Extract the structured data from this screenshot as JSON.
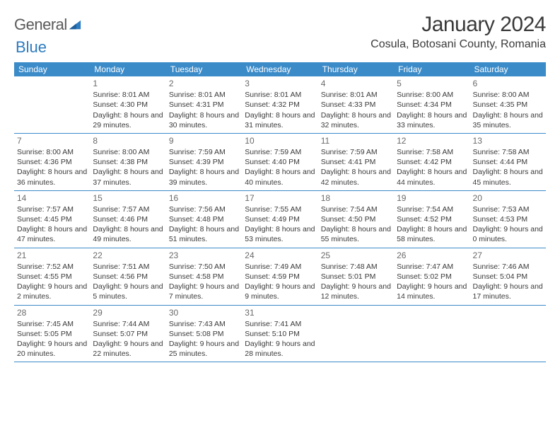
{
  "logo": {
    "text1": "General",
    "text2": "Blue"
  },
  "header": {
    "title": "January 2024",
    "location": "Cosula, Botosani County, Romania"
  },
  "colors": {
    "header_bar": "#3b8bc9",
    "week_divider": "#3b8bc9",
    "text": "#3a3a3a",
    "daynum": "#6a6a6a",
    "logo_gray": "#5a5a5a",
    "logo_blue": "#2d7bc0",
    "background": "#ffffff"
  },
  "weekdays": [
    "Sunday",
    "Monday",
    "Tuesday",
    "Wednesday",
    "Thursday",
    "Friday",
    "Saturday"
  ],
  "weeks": [
    [
      {
        "n": "",
        "sr": "",
        "ss": "",
        "dl": ""
      },
      {
        "n": "1",
        "sr": "Sunrise: 8:01 AM",
        "ss": "Sunset: 4:30 PM",
        "dl": "Daylight: 8 hours and 29 minutes."
      },
      {
        "n": "2",
        "sr": "Sunrise: 8:01 AM",
        "ss": "Sunset: 4:31 PM",
        "dl": "Daylight: 8 hours and 30 minutes."
      },
      {
        "n": "3",
        "sr": "Sunrise: 8:01 AM",
        "ss": "Sunset: 4:32 PM",
        "dl": "Daylight: 8 hours and 31 minutes."
      },
      {
        "n": "4",
        "sr": "Sunrise: 8:01 AM",
        "ss": "Sunset: 4:33 PM",
        "dl": "Daylight: 8 hours and 32 minutes."
      },
      {
        "n": "5",
        "sr": "Sunrise: 8:00 AM",
        "ss": "Sunset: 4:34 PM",
        "dl": "Daylight: 8 hours and 33 minutes."
      },
      {
        "n": "6",
        "sr": "Sunrise: 8:00 AM",
        "ss": "Sunset: 4:35 PM",
        "dl": "Daylight: 8 hours and 35 minutes."
      }
    ],
    [
      {
        "n": "7",
        "sr": "Sunrise: 8:00 AM",
        "ss": "Sunset: 4:36 PM",
        "dl": "Daylight: 8 hours and 36 minutes."
      },
      {
        "n": "8",
        "sr": "Sunrise: 8:00 AM",
        "ss": "Sunset: 4:38 PM",
        "dl": "Daylight: 8 hours and 37 minutes."
      },
      {
        "n": "9",
        "sr": "Sunrise: 7:59 AM",
        "ss": "Sunset: 4:39 PM",
        "dl": "Daylight: 8 hours and 39 minutes."
      },
      {
        "n": "10",
        "sr": "Sunrise: 7:59 AM",
        "ss": "Sunset: 4:40 PM",
        "dl": "Daylight: 8 hours and 40 minutes."
      },
      {
        "n": "11",
        "sr": "Sunrise: 7:59 AM",
        "ss": "Sunset: 4:41 PM",
        "dl": "Daylight: 8 hours and 42 minutes."
      },
      {
        "n": "12",
        "sr": "Sunrise: 7:58 AM",
        "ss": "Sunset: 4:42 PM",
        "dl": "Daylight: 8 hours and 44 minutes."
      },
      {
        "n": "13",
        "sr": "Sunrise: 7:58 AM",
        "ss": "Sunset: 4:44 PM",
        "dl": "Daylight: 8 hours and 45 minutes."
      }
    ],
    [
      {
        "n": "14",
        "sr": "Sunrise: 7:57 AM",
        "ss": "Sunset: 4:45 PM",
        "dl": "Daylight: 8 hours and 47 minutes."
      },
      {
        "n": "15",
        "sr": "Sunrise: 7:57 AM",
        "ss": "Sunset: 4:46 PM",
        "dl": "Daylight: 8 hours and 49 minutes."
      },
      {
        "n": "16",
        "sr": "Sunrise: 7:56 AM",
        "ss": "Sunset: 4:48 PM",
        "dl": "Daylight: 8 hours and 51 minutes."
      },
      {
        "n": "17",
        "sr": "Sunrise: 7:55 AM",
        "ss": "Sunset: 4:49 PM",
        "dl": "Daylight: 8 hours and 53 minutes."
      },
      {
        "n": "18",
        "sr": "Sunrise: 7:54 AM",
        "ss": "Sunset: 4:50 PM",
        "dl": "Daylight: 8 hours and 55 minutes."
      },
      {
        "n": "19",
        "sr": "Sunrise: 7:54 AM",
        "ss": "Sunset: 4:52 PM",
        "dl": "Daylight: 8 hours and 58 minutes."
      },
      {
        "n": "20",
        "sr": "Sunrise: 7:53 AM",
        "ss": "Sunset: 4:53 PM",
        "dl": "Daylight: 9 hours and 0 minutes."
      }
    ],
    [
      {
        "n": "21",
        "sr": "Sunrise: 7:52 AM",
        "ss": "Sunset: 4:55 PM",
        "dl": "Daylight: 9 hours and 2 minutes."
      },
      {
        "n": "22",
        "sr": "Sunrise: 7:51 AM",
        "ss": "Sunset: 4:56 PM",
        "dl": "Daylight: 9 hours and 5 minutes."
      },
      {
        "n": "23",
        "sr": "Sunrise: 7:50 AM",
        "ss": "Sunset: 4:58 PM",
        "dl": "Daylight: 9 hours and 7 minutes."
      },
      {
        "n": "24",
        "sr": "Sunrise: 7:49 AM",
        "ss": "Sunset: 4:59 PM",
        "dl": "Daylight: 9 hours and 9 minutes."
      },
      {
        "n": "25",
        "sr": "Sunrise: 7:48 AM",
        "ss": "Sunset: 5:01 PM",
        "dl": "Daylight: 9 hours and 12 minutes."
      },
      {
        "n": "26",
        "sr": "Sunrise: 7:47 AM",
        "ss": "Sunset: 5:02 PM",
        "dl": "Daylight: 9 hours and 14 minutes."
      },
      {
        "n": "27",
        "sr": "Sunrise: 7:46 AM",
        "ss": "Sunset: 5:04 PM",
        "dl": "Daylight: 9 hours and 17 minutes."
      }
    ],
    [
      {
        "n": "28",
        "sr": "Sunrise: 7:45 AM",
        "ss": "Sunset: 5:05 PM",
        "dl": "Daylight: 9 hours and 20 minutes."
      },
      {
        "n": "29",
        "sr": "Sunrise: 7:44 AM",
        "ss": "Sunset: 5:07 PM",
        "dl": "Daylight: 9 hours and 22 minutes."
      },
      {
        "n": "30",
        "sr": "Sunrise: 7:43 AM",
        "ss": "Sunset: 5:08 PM",
        "dl": "Daylight: 9 hours and 25 minutes."
      },
      {
        "n": "31",
        "sr": "Sunrise: 7:41 AM",
        "ss": "Sunset: 5:10 PM",
        "dl": "Daylight: 9 hours and 28 minutes."
      },
      {
        "n": "",
        "sr": "",
        "ss": "",
        "dl": ""
      },
      {
        "n": "",
        "sr": "",
        "ss": "",
        "dl": ""
      },
      {
        "n": "",
        "sr": "",
        "ss": "",
        "dl": ""
      }
    ]
  ]
}
